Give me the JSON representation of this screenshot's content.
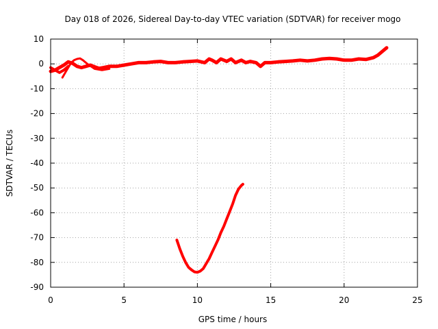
{
  "chart_data": {
    "type": "line",
    "title": "Day 018 of 2026, Sidereal Day-to-day VTEC variation (SDTVAR) for receiver mogo",
    "xlabel": "GPS time / hours",
    "ylabel": "SDTVAR / TECUs",
    "xlim": [
      0,
      25
    ],
    "ylim": [
      -90,
      10
    ],
    "xticks": [
      0,
      5,
      10,
      15,
      20,
      25
    ],
    "yticks": [
      10,
      0,
      -10,
      -20,
      -30,
      -40,
      -50,
      -60,
      -70,
      -80,
      -90
    ],
    "grid": true,
    "color": "#ff0000",
    "series": [
      {
        "name": "main trace",
        "x": [
          0.0,
          0.3,
          0.6,
          0.9,
          1.2,
          1.5,
          1.8,
          2.1,
          2.4,
          2.7,
          3.0,
          3.3,
          3.6,
          4.0,
          4.5,
          5.0,
          5.5,
          6.0,
          6.5,
          7.0,
          7.5,
          8.0,
          8.5,
          9.0,
          9.5,
          10.0,
          10.5,
          10.8,
          11.0,
          11.3,
          11.6,
          12.0,
          12.3,
          12.6,
          13.0,
          13.3,
          13.6,
          14.0,
          14.3,
          14.6,
          15.0,
          15.5,
          16.0,
          16.5,
          17.0,
          17.5,
          18.0,
          18.5,
          19.0,
          19.5,
          20.0,
          20.5,
          21.0,
          21.5,
          22.0,
          22.3,
          22.6,
          22.9
        ],
        "y": [
          -3.0,
          -2.5,
          -1.5,
          -0.5,
          0.8,
          0.2,
          -1.0,
          -1.5,
          -1.0,
          -0.5,
          -1.2,
          -1.8,
          -1.5,
          -1.0,
          -1.0,
          -0.5,
          0.0,
          0.5,
          0.5,
          0.8,
          1.0,
          0.5,
          0.5,
          0.8,
          1.0,
          1.2,
          0.5,
          2.0,
          1.5,
          0.5,
          2.0,
          1.0,
          2.0,
          0.5,
          1.5,
          0.5,
          1.0,
          0.5,
          -1.0,
          0.5,
          0.5,
          0.8,
          1.0,
          1.2,
          1.5,
          1.2,
          1.5,
          2.0,
          2.2,
          2.0,
          1.5,
          1.5,
          2.0,
          1.8,
          2.5,
          3.5,
          5.0,
          6.5
        ],
        "width": 5
      },
      {
        "name": "early arc",
        "x": [
          0.8,
          1.0,
          1.2,
          1.4,
          1.6,
          1.8,
          2.0,
          2.2,
          2.5,
          3.0,
          3.5,
          4.0
        ],
        "y": [
          -5.5,
          -3.5,
          -1.5,
          0.5,
          1.5,
          2.0,
          2.2,
          1.5,
          0.0,
          -2.0,
          -2.5,
          -2.0
        ],
        "width": 3
      },
      {
        "name": "initial drop",
        "x": [
          0.0,
          0.3,
          0.6,
          0.9,
          1.2
        ],
        "y": [
          -1.5,
          -2.5,
          -3.5,
          -2.5,
          -1.0
        ],
        "width": 4
      },
      {
        "name": "U-shaped arc",
        "x": [
          8.6,
          8.8,
          9.0,
          9.2,
          9.4,
          9.6,
          9.8,
          10.0,
          10.2,
          10.4,
          10.6,
          10.8,
          11.0,
          11.2,
          11.4,
          11.6,
          11.8,
          12.0,
          12.2,
          12.4,
          12.6,
          12.8,
          13.0,
          13.1
        ],
        "y": [
          -71.0,
          -74.5,
          -77.5,
          -80.0,
          -82.0,
          -83.0,
          -83.8,
          -84.0,
          -83.5,
          -82.5,
          -80.5,
          -78.5,
          -76.0,
          -73.5,
          -71.0,
          -68.0,
          -65.5,
          -62.5,
          -59.5,
          -56.5,
          -53.0,
          -50.5,
          -49.0,
          -48.5
        ],
        "width": 4
      }
    ]
  }
}
